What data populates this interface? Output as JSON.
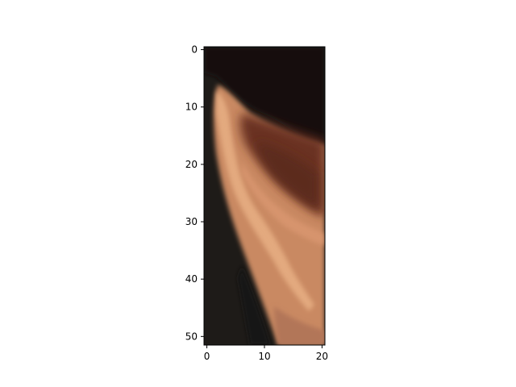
{
  "chart_data": {
    "type": "heatmap",
    "title": "",
    "xlabel": "",
    "ylabel": "",
    "xlim": [
      -0.5,
      20.5
    ],
    "ylim": [
      51.5,
      -0.5
    ],
    "x_ticks": [
      0,
      10,
      20
    ],
    "y_ticks": [
      0,
      10,
      20,
      30,
      40,
      50
    ],
    "grid": false,
    "image_width_cells": 21,
    "image_height_cells": 52,
    "image_content": "pixelated close-up crop of a human ear against dark hair and background",
    "colors": {
      "background_dark": "#1e1b18",
      "hair": "#141210",
      "skin_light": "#e0a47a",
      "skin_mid": "#c98962",
      "skin_shadow": "#8e4f35",
      "inner_ear_dark": "#5e2c20",
      "neck": "#b27659"
    }
  }
}
